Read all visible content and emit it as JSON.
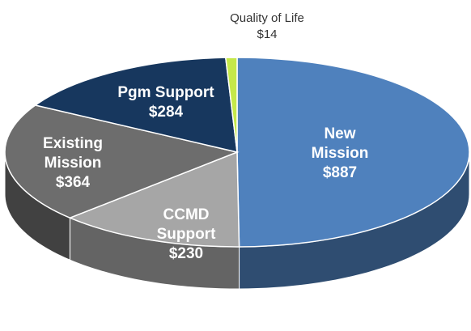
{
  "chart_data": {
    "type": "pie",
    "categories": [
      "New Mission",
      "CCMD Support",
      "Existing Mission",
      "Pgm Support",
      "Quality of Life"
    ],
    "values": [
      887,
      230,
      364,
      284,
      14
    ],
    "value_labels": [
      "$887",
      "$230",
      "$364",
      "$284",
      "$14"
    ],
    "colors": [
      "#4f81bd",
      "#a6a6a6",
      "#6d6d6d",
      "#17375e",
      "#c5e84a"
    ]
  }
}
